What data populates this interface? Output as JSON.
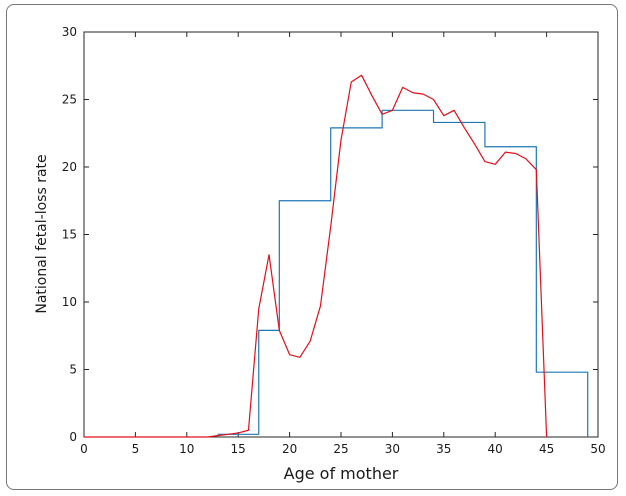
{
  "chart_data": {
    "type": "line",
    "xlabel": "Age of mother",
    "ylabel": "National fetal-loss rate",
    "xlim": [
      0,
      50
    ],
    "ylim": [
      0,
      30
    ],
    "xticks": [
      0,
      5,
      10,
      15,
      20,
      25,
      30,
      35,
      40,
      45,
      50
    ],
    "yticks": [
      0,
      5,
      10,
      15,
      20,
      25,
      30
    ],
    "grid": false,
    "colors": {
      "step": "#1f77b4",
      "curve": "#e0101a"
    },
    "series": [
      {
        "style": "step",
        "color": "#1f77b4",
        "x": [
          13,
          14,
          17,
          19,
          24,
          29,
          34,
          39,
          44,
          49
        ],
        "y": [
          0.2,
          0.2,
          7.9,
          17.5,
          22.9,
          24.2,
          23.3,
          21.5,
          4.8,
          0
        ]
      },
      {
        "style": "line",
        "color": "#e0101a",
        "x": [
          0,
          1,
          2,
          3,
          4,
          5,
          6,
          7,
          8,
          9,
          10,
          11,
          12,
          13,
          14,
          15,
          16,
          17,
          18,
          19,
          20,
          21,
          22,
          23,
          24,
          25,
          26,
          27,
          28,
          29,
          30,
          31,
          32,
          33,
          34,
          35,
          36,
          37,
          38,
          39,
          40,
          41,
          42,
          43,
          44,
          45
        ],
        "y": [
          0,
          0,
          0,
          0,
          0,
          0,
          0,
          0,
          0,
          0,
          0,
          0,
          0,
          0.1,
          0.2,
          0.3,
          0.5,
          9.5,
          13.5,
          7.9,
          6.1,
          5.9,
          7.1,
          9.7,
          15.6,
          22.0,
          26.3,
          26.8,
          25.3,
          23.9,
          24.2,
          25.9,
          25.5,
          25.4,
          25.0,
          23.8,
          24.2,
          22.9,
          21.7,
          20.4,
          20.2,
          21.1,
          21.0,
          20.6,
          19.8,
          0
        ]
      }
    ]
  }
}
